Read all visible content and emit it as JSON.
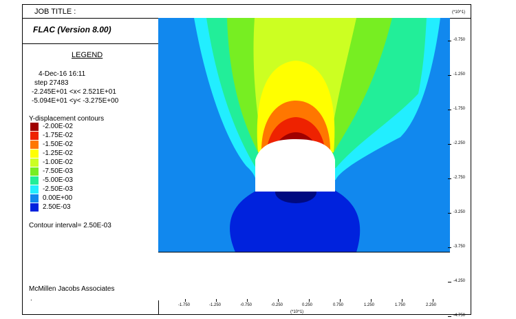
{
  "header": {
    "job_title": "JOB TITLE :",
    "app_version": "FLAC (Version 8.00)"
  },
  "legend": {
    "title": "LEGEND",
    "date": "4-Dec-16  16:11",
    "step": "step    27483",
    "x_range": "-2.245E+01 <x<  2.521E+01",
    "y_range": "-5.094E+01 <y< -3.275E+00",
    "contour_title": "Y-displacement contours",
    "contours": [
      {
        "label": "-2.00E-02",
        "color": "#a00000"
      },
      {
        "label": "-1.75E-02",
        "color": "#ee2200"
      },
      {
        "label": "-1.50E-02",
        "color": "#ff7700"
      },
      {
        "label": "-1.25E-02",
        "color": "#ffff00"
      },
      {
        "label": "-1.00E-02",
        "color": "#ccff22"
      },
      {
        "label": "-7.50E-03",
        "color": "#77ee22"
      },
      {
        "label": "-5.00E-03",
        "color": "#22ee99"
      },
      {
        "label": "-2.50E-03",
        "color": "#22eeff"
      },
      {
        "label": "0.00E+00",
        "color": "#1188ee"
      },
      {
        "label": "2.50E-03",
        "color": "#0022dd"
      }
    ],
    "contour_interval": "Contour interval=  2.50E-03",
    "company": "McMillen Jacobs Associates",
    "footnote": "."
  },
  "axes": {
    "y_multiplier": "(*10^1)",
    "x_multiplier": "(*10^1)",
    "y_ticks": [
      "-0.750",
      "-1.250",
      "-1.750",
      "-2.250",
      "-2.750",
      "-3.250",
      "-3.750",
      "-4.250",
      "-4.750"
    ],
    "x_ticks": [
      "-1.750",
      "-1.250",
      "-0.750",
      "-0.250",
      "0.250",
      "0.750",
      "1.250",
      "1.750",
      "2.250"
    ]
  }
}
